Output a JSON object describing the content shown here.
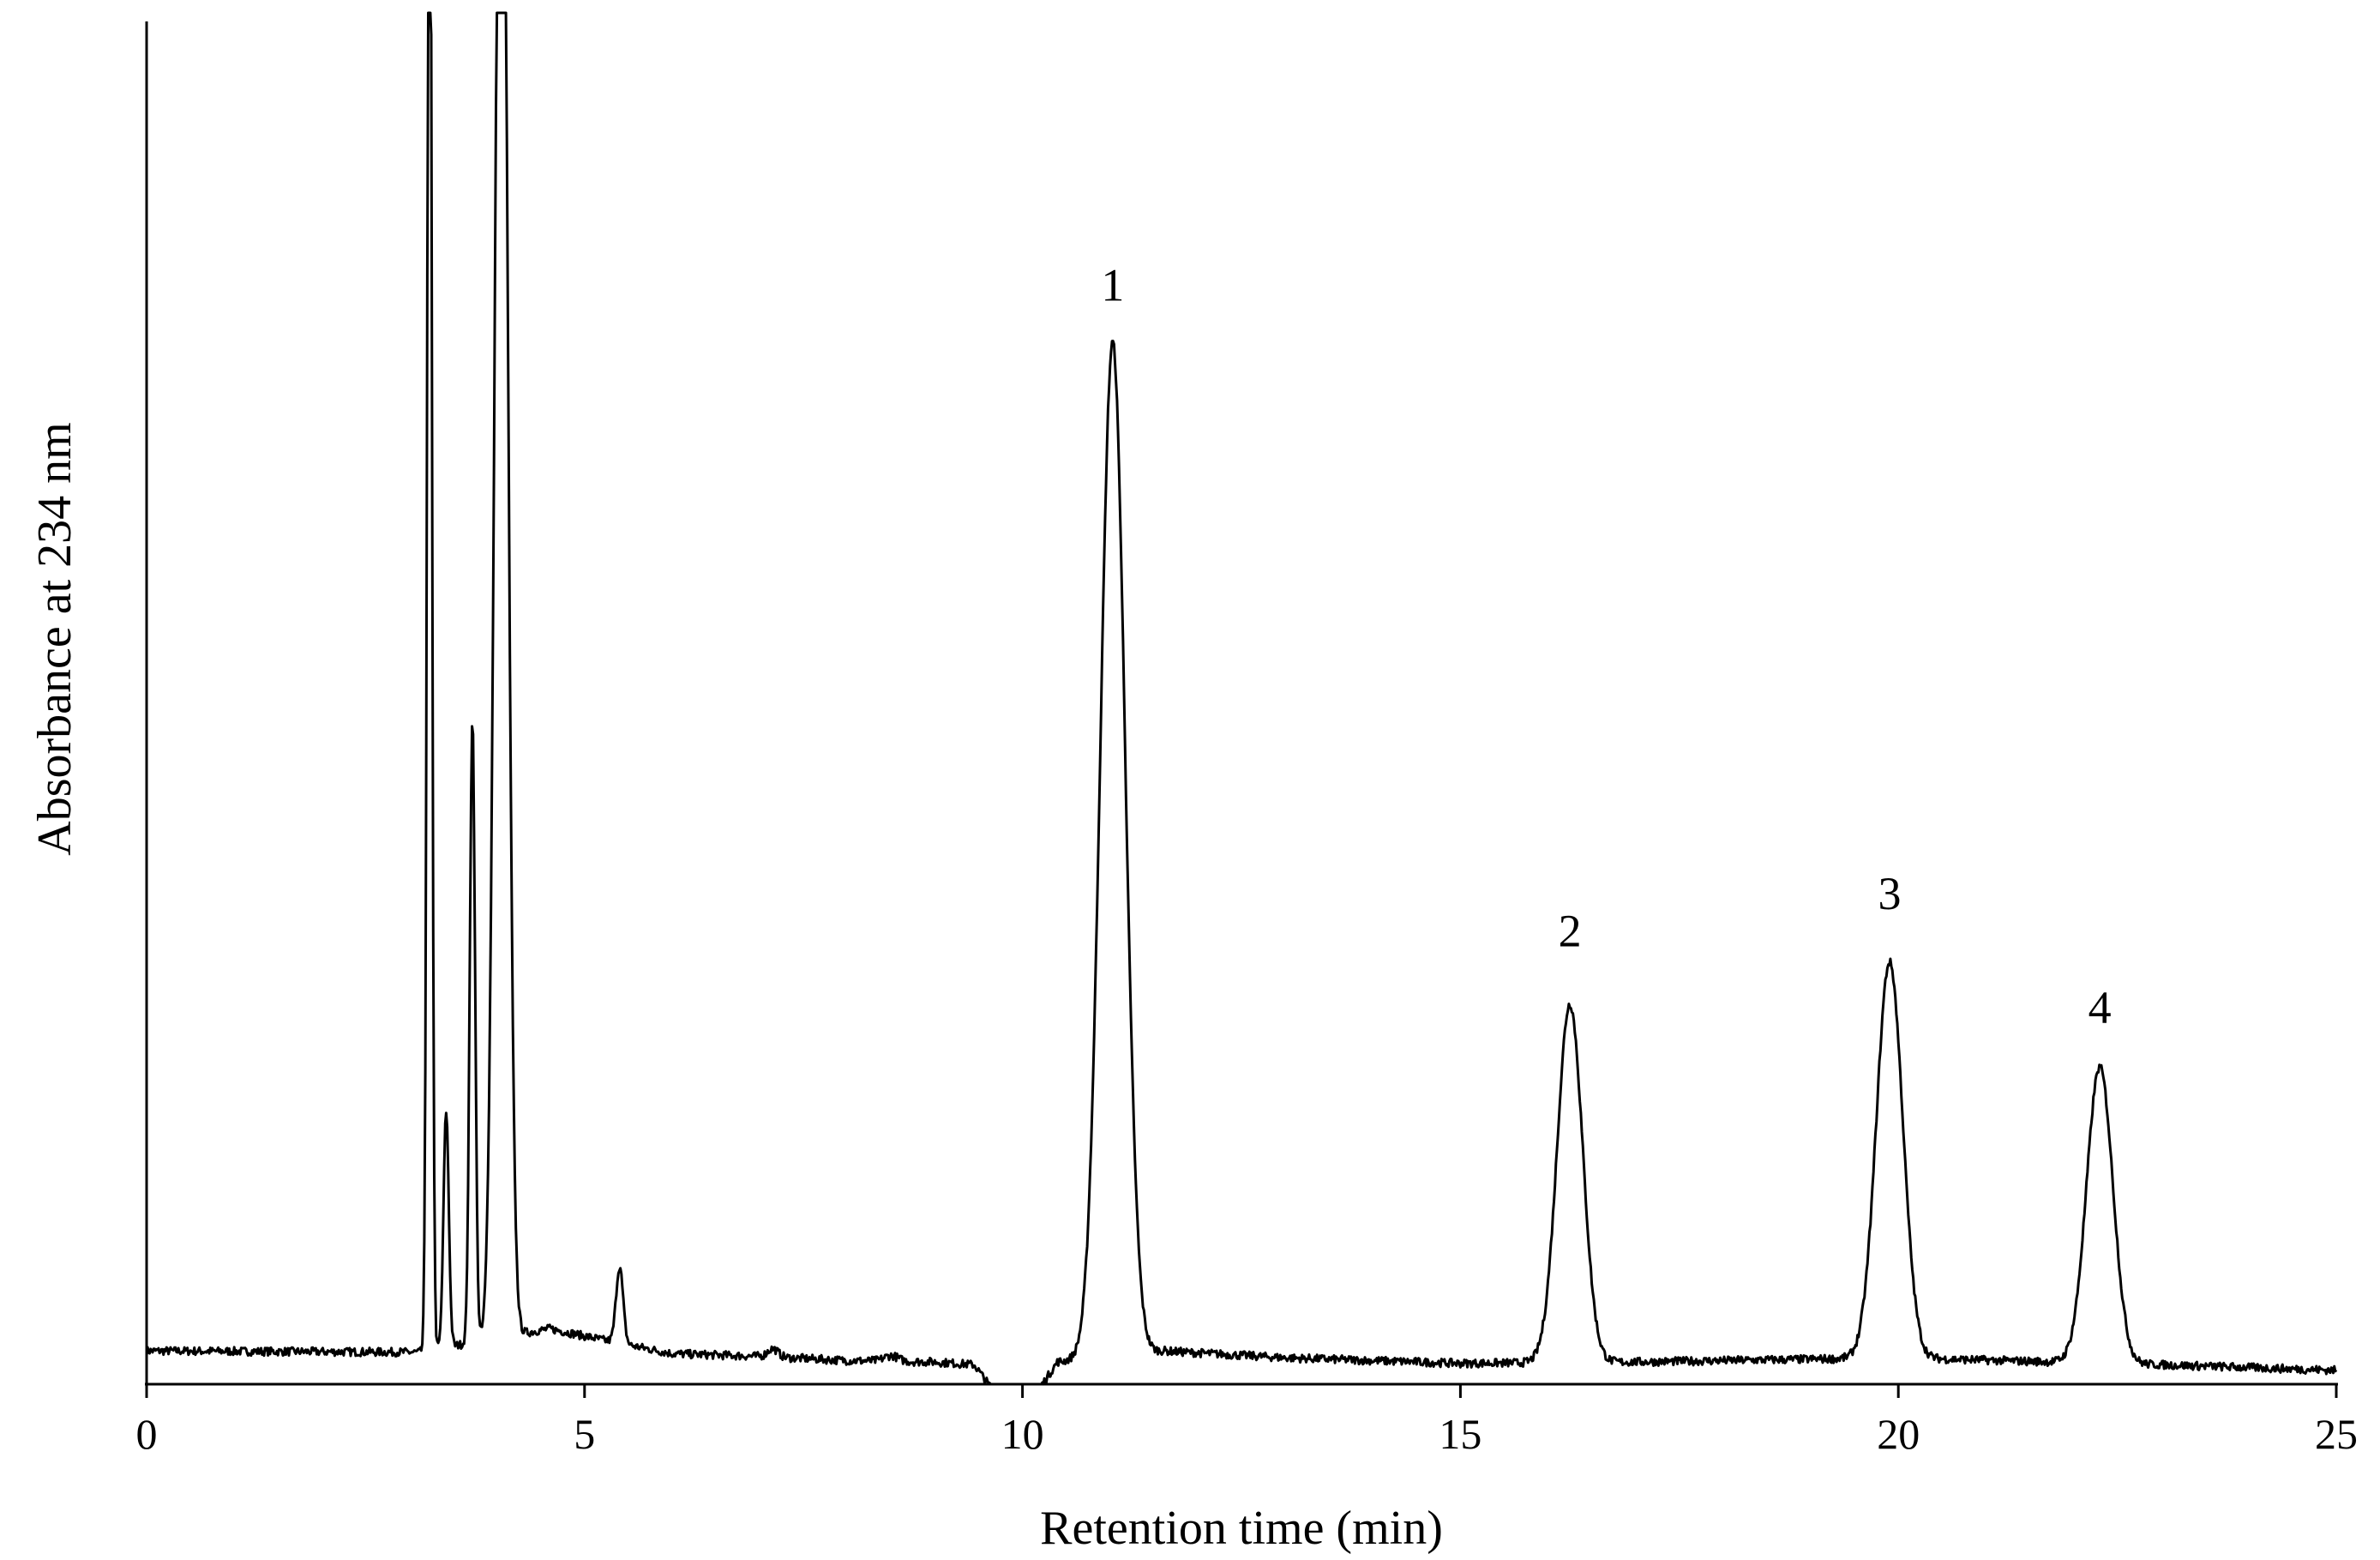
{
  "chart_data": {
    "type": "line",
    "title": "",
    "xlabel": "Retention time (min)",
    "ylabel": "Absorbance  at 234 nm",
    "xlim": [
      0,
      25
    ],
    "ylim": [
      0,
      1
    ],
    "x_ticks": [
      "0",
      "5",
      "10",
      "15",
      "20",
      "25"
    ],
    "y_ticks": [],
    "grid": false,
    "legend": "none",
    "baseline": [
      {
        "x": 0.0,
        "y": 0.024
      },
      {
        "x": 3.1,
        "y": 0.023
      },
      {
        "x": 4.6,
        "y": 0.04
      },
      {
        "x": 5.2,
        "y": 0.032
      },
      {
        "x": 6.0,
        "y": 0.022
      },
      {
        "x": 7.0,
        "y": 0.02
      },
      {
        "x": 8.0,
        "y": 0.017
      },
      {
        "x": 9.0,
        "y": 0.016
      },
      {
        "x": 9.45,
        "y": 0.014
      },
      {
        "x": 9.75,
        "y": -0.012
      },
      {
        "x": 10.1,
        "y": -0.012
      },
      {
        "x": 10.4,
        "y": 0.016
      },
      {
        "x": 11.6,
        "y": 0.024
      },
      {
        "x": 13.0,
        "y": 0.019
      },
      {
        "x": 15.0,
        "y": 0.015
      },
      {
        "x": 17.0,
        "y": 0.016
      },
      {
        "x": 20.0,
        "y": 0.019
      },
      {
        "x": 23.0,
        "y": 0.014
      },
      {
        "x": 25.0,
        "y": 0.01
      }
    ],
    "peaks": [
      {
        "x": 3.23,
        "height": 1.3,
        "width": 0.025
      },
      {
        "x": 3.42,
        "height": 0.17,
        "width": 0.03
      },
      {
        "x": 3.72,
        "height": 0.45,
        "width": 0.03
      },
      {
        "x": 4.05,
        "height": 1.3,
        "width": 0.07
      },
      {
        "x": 5.4,
        "height": 0.055,
        "width": 0.04
      },
      {
        "x": 7.15,
        "height": 0.006,
        "width": 0.06
      },
      {
        "x": 8.5,
        "height": 0.004,
        "width": 0.08
      },
      {
        "x": 11.03,
        "height": 0.73,
        "width": 0.14
      },
      {
        "x": 16.25,
        "height": 0.258,
        "width": 0.145
      },
      {
        "x": 19.9,
        "height": 0.285,
        "width": 0.15
      },
      {
        "x": 22.3,
        "height": 0.213,
        "width": 0.15
      }
    ],
    "peak_labels": [
      {
        "text": "1",
        "x": 11.03,
        "y": 0.78
      },
      {
        "text": "2",
        "x": 16.25,
        "y": 0.315
      },
      {
        "text": "3",
        "x": 19.9,
        "y": 0.342
      },
      {
        "text": "4",
        "x": 22.3,
        "y": 0.26
      }
    ]
  }
}
